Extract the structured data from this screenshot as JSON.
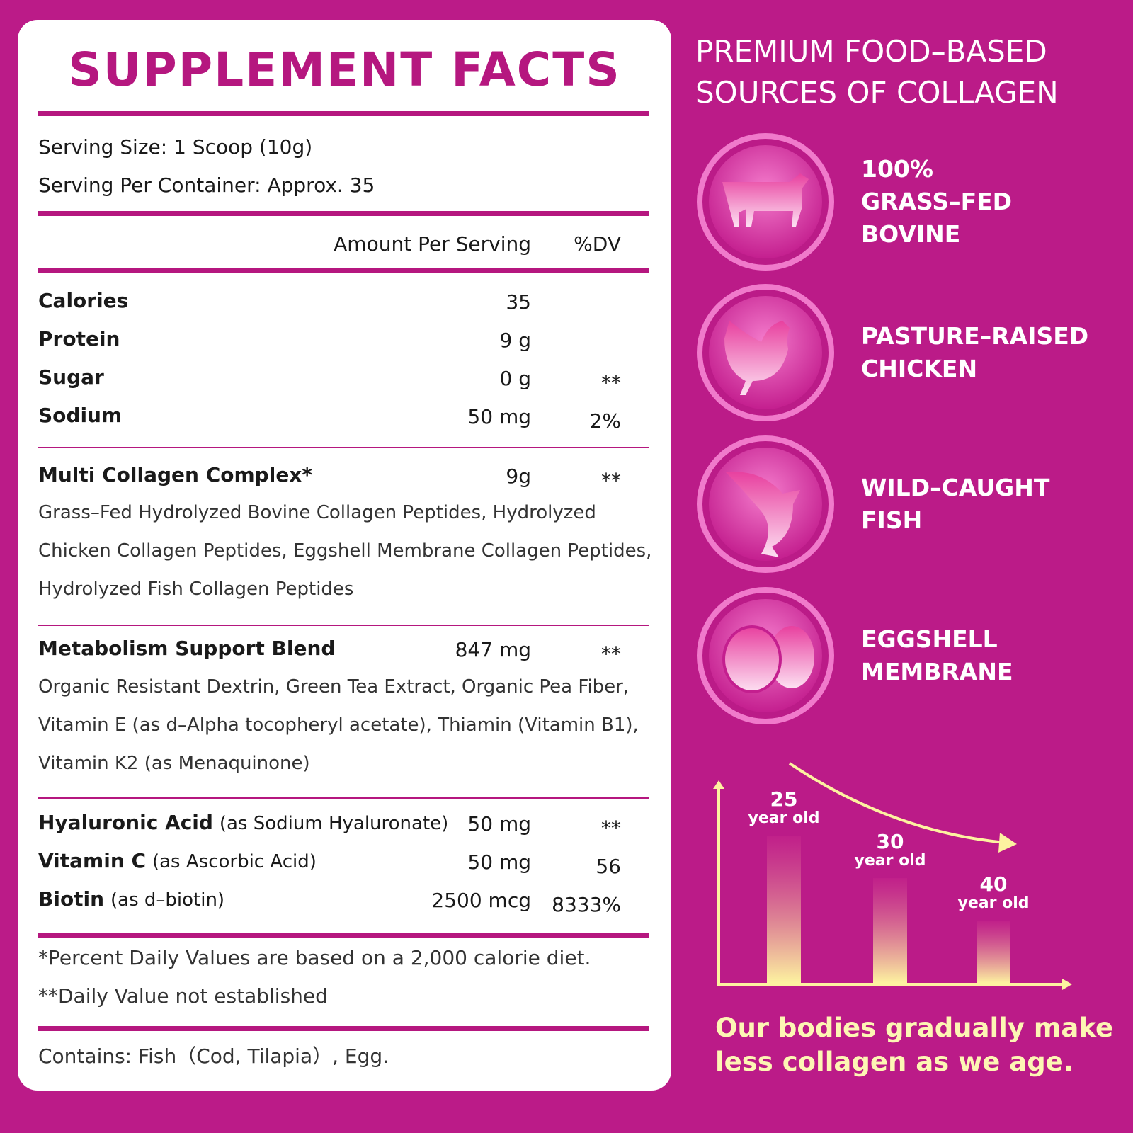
{
  "facts": {
    "title": "SUPPLEMENT FACTS",
    "serving_size": "Serving Size: 1 Scoop (10g)",
    "servings_per_container": "Serving Per Container:  Approx. 35",
    "header": {
      "amount": "Amount Per Serving",
      "dv": "%DV"
    },
    "sections": [
      {
        "rows": [
          {
            "name": "Calories",
            "amount": "35"
          },
          {
            "name": "Protein",
            "amount": "9 g"
          },
          {
            "name": "Sugar",
            "amount": "0 g",
            "dv": "**"
          },
          {
            "name": "Sodium",
            "amount": "50 mg",
            "dv": "2%"
          }
        ]
      },
      {
        "rows": [
          {
            "name": "Multi Collagen Complex*",
            "amount": "9g",
            "dv": "**"
          }
        ],
        "description": "Grass–Fed Hydrolyzed Bovine Collagen Peptides, Hydrolyzed Chicken Collagen Peptides, Eggshell Membrane Collagen Peptides, Hydrolyzed Fish Collagen Peptides"
      },
      {
        "rows": [
          {
            "name": "Metabolism Support Blend",
            "amount": "847 mg",
            "dv": "**"
          }
        ],
        "description": "Organic Resistant Dextrin, Green Tea Extract, Organic Pea Fiber, Vitamin E (as d–Alpha tocopheryl acetate), Thiamin (Vitamin B1), Vitamin K2 (as Menaquinone)"
      },
      {
        "rows": [
          {
            "name": "Hyaluronic Acid",
            "note": "(as Sodium Hyaluronate)",
            "amount": "50 mg",
            "dv": "**"
          },
          {
            "name": "Vitamin C",
            "note": "(as Ascorbic Acid)",
            "amount": "50 mg",
            "dv": "56"
          },
          {
            "name": "Biotin",
            "note": "(as d–biotin)",
            "amount": "2500 mcg",
            "dv": "8333%"
          }
        ]
      }
    ],
    "footnotes": [
      "*Percent Daily Values are based on a 2,000 calorie diet.",
      "**Daily Value not established"
    ],
    "contains": "Contains: Fish（Cod, Tilapia）, Egg."
  },
  "sources": {
    "heading": [
      "PREMIUM FOOD–BASED",
      "SOURCES OF COLLAGEN"
    ],
    "items": [
      {
        "label": [
          "100%",
          "GRASS–FED",
          "BOVINE"
        ]
      },
      {
        "label": [
          "PASTURE–RAISED",
          "CHICKEN"
        ]
      },
      {
        "label": [
          "WILD–CAUGHT",
          "FISH"
        ]
      },
      {
        "label": [
          "EGGSHELL",
          "MEMBRANE"
        ]
      }
    ]
  },
  "age_chart": {
    "bars": [
      {
        "age": "25",
        "unit": "year old"
      },
      {
        "age": "30",
        "unit": "year old"
      },
      {
        "age": "40",
        "unit": "year old"
      }
    ],
    "caption": [
      "Our bodies gradually make",
      "less collagen as we age."
    ]
  }
}
